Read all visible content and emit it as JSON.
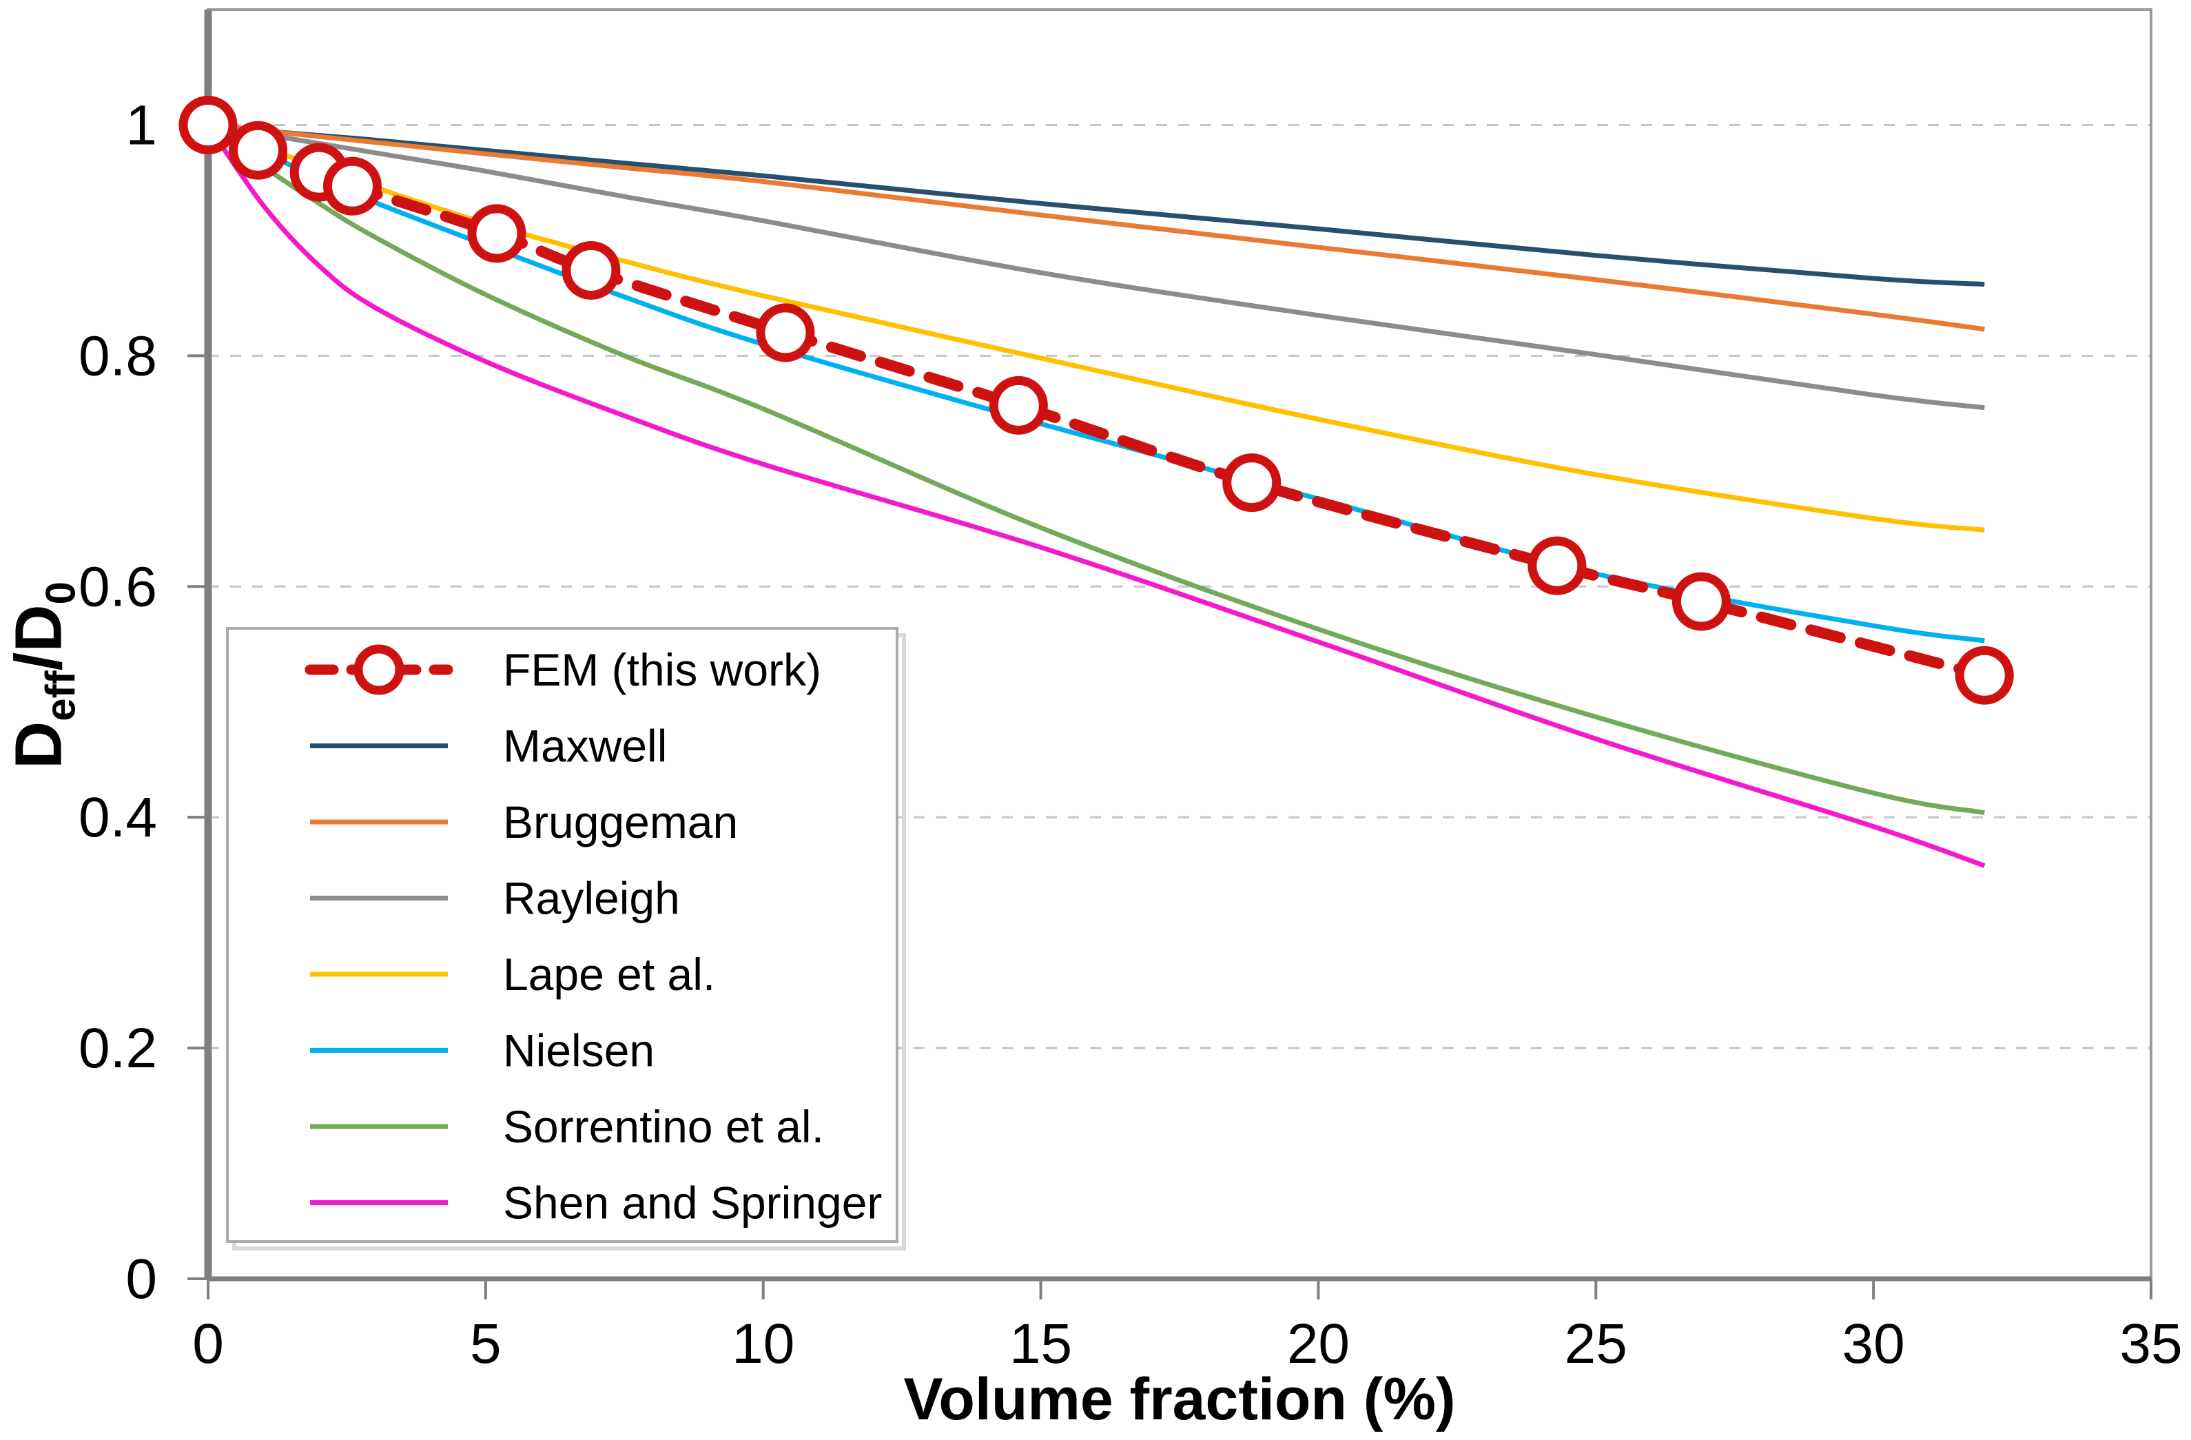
{
  "chart_data": {
    "type": "line",
    "title": "",
    "xlabel": "Volume fraction (%)",
    "ylabel": "D_eff/D_0",
    "ylabel_parts": {
      "base1": "D",
      "sub1": "eff",
      "base2": "/D",
      "sub2": "0"
    },
    "xlim": [
      0,
      35
    ],
    "ylim": [
      0,
      1.1
    ],
    "x_ticks": [
      0,
      5,
      10,
      15,
      20,
      25,
      30,
      35
    ],
    "y_ticks": [
      0,
      0.2,
      0.4,
      0.6,
      0.8,
      1
    ],
    "y_tick_labels": [
      "0",
      "0.2",
      "0.4",
      "0.6",
      "0.8",
      "1"
    ],
    "grid_values": [
      0.2,
      0.4,
      0.6,
      0.8,
      1
    ],
    "grid_on": true,
    "legend_position": "middle-left",
    "colors": {
      "fem": "#CE1212",
      "maxwell": "#27506F",
      "bruggeman": "#E87A33",
      "rayleigh": "#8C8C8C",
      "lape": "#FFC000",
      "nielsen": "#00B0F0",
      "sorrentino": "#74A85A",
      "shen": "#F21ACB",
      "gridline": "#C6C6C6",
      "axis": "#7F7F7F",
      "plot_border": "#9A9A9A",
      "legend_border": "#ABABAB"
    },
    "x_samples": [
      0,
      1,
      2,
      3,
      5,
      7.5,
      10,
      15,
      20,
      25,
      30,
      32
    ],
    "series": [
      {
        "name": "Maxwell",
        "color": "#27506F",
        "values": [
          1,
          0.995,
          0.991,
          0.987,
          0.978,
          0.967,
          0.956,
          0.932,
          0.91,
          0.887,
          0.867,
          0.862
        ]
      },
      {
        "name": "Bruggeman",
        "color": "#E87A33",
        "values": [
          1,
          0.995,
          0.99,
          0.985,
          0.975,
          0.963,
          0.951,
          0.922,
          0.894,
          0.866,
          0.836,
          0.823
        ]
      },
      {
        "name": "Rayleigh",
        "color": "#8C8C8C",
        "values": [
          1,
          0.992,
          0.984,
          0.976,
          0.96,
          0.938,
          0.917,
          0.872,
          0.835,
          0.801,
          0.766,
          0.755
        ]
      },
      {
        "name": "Lape et al.",
        "color": "#FFC000",
        "values": [
          1,
          0.981,
          0.963,
          0.946,
          0.915,
          0.882,
          0.852,
          0.798,
          0.745,
          0.697,
          0.659,
          0.649
        ]
      },
      {
        "name": "Nielsen",
        "color": "#00B0F0",
        "values": [
          1,
          0.976,
          0.954,
          0.933,
          0.896,
          0.851,
          0.81,
          0.741,
          0.676,
          0.611,
          0.566,
          0.553
        ]
      },
      {
        "name": "Sorrentino et al.",
        "color": "#74A85A",
        "values": [
          1,
          0.964,
          0.932,
          0.903,
          0.853,
          0.8,
          0.754,
          0.651,
          0.563,
          0.487,
          0.421,
          0.404
        ]
      },
      {
        "name": "Shen and Springer",
        "color": "#F21ACB",
        "values": [
          1,
          0.93,
          0.878,
          0.842,
          0.795,
          0.748,
          0.706,
          0.634,
          0.552,
          0.468,
          0.392,
          0.358
        ]
      }
    ],
    "fem_series": {
      "name": "FEM (this work)",
      "color": "#CE1212",
      "line_style": "dashed",
      "marker": "open-circle",
      "x": [
        0,
        0.9,
        2.0,
        2.6,
        5.2,
        6.9,
        10.4,
        14.6,
        18.8,
        24.3,
        26.9,
        32.0
      ],
      "y": [
        1.0,
        0.978,
        0.959,
        0.947,
        0.906,
        0.874,
        0.82,
        0.757,
        0.69,
        0.618,
        0.587,
        0.523
      ]
    },
    "legend_entries": [
      "FEM (this work)",
      "Maxwell",
      "Bruggeman",
      "Rayleigh",
      "Lape et al.",
      "Nielsen",
      "Sorrentino et al.",
      "Shen and Springer"
    ]
  }
}
